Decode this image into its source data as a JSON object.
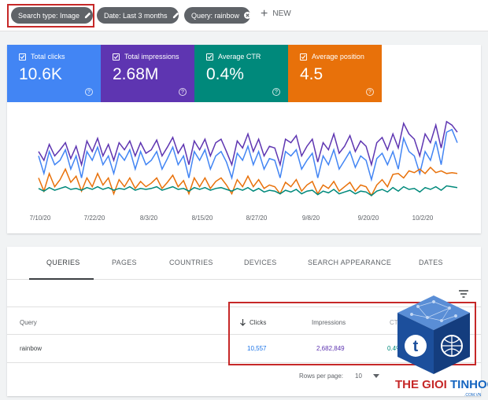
{
  "filters": {
    "chips": [
      {
        "label": "Search type: Image"
      },
      {
        "label": "Date: Last 3 months"
      },
      {
        "label": "Query: rainbow"
      }
    ],
    "new_label": "NEW"
  },
  "metrics": [
    {
      "label": "Total clicks",
      "value": "10.6K",
      "color": "#4285f4"
    },
    {
      "label": "Total impressions",
      "value": "2.68M",
      "color": "#5e35b1"
    },
    {
      "label": "Average CTR",
      "value": "0.4%",
      "color": "#00897b"
    },
    {
      "label": "Average position",
      "value": "4.5",
      "color": "#e8710a"
    }
  ],
  "chart_data": {
    "type": "line",
    "x_ticks": [
      "7/10/20",
      "7/22/20",
      "8/3/20",
      "8/15/20",
      "8/27/20",
      "9/8/20",
      "9/20/20",
      "10/2/20"
    ],
    "series": [
      {
        "name": "Total clicks",
        "color": "#4285f4",
        "values": [
          0.55,
          0.35,
          0.6,
          0.45,
          0.5,
          0.62,
          0.4,
          0.55,
          0.3,
          0.6,
          0.5,
          0.65,
          0.45,
          0.55,
          0.35,
          0.58,
          0.5,
          0.62,
          0.4,
          0.6,
          0.45,
          0.5,
          0.6,
          0.4,
          0.52,
          0.65,
          0.45,
          0.55,
          0.3,
          0.6,
          0.5,
          0.62,
          0.4,
          0.55,
          0.6,
          0.48,
          0.3,
          0.58,
          0.5,
          0.66,
          0.45,
          0.6,
          0.4,
          0.52,
          0.5,
          0.3,
          0.6,
          0.55,
          0.62,
          0.4,
          0.5,
          0.58,
          0.3,
          0.55,
          0.45,
          0.62,
          0.4,
          0.5,
          0.6,
          0.42,
          0.55,
          0.5,
          0.28,
          0.52,
          0.58,
          0.45,
          0.6,
          0.4,
          0.75,
          0.6,
          0.55,
          0.35,
          0.6,
          0.5,
          0.72,
          0.45,
          0.82,
          0.85,
          0.7
        ]
      },
      {
        "name": "Total impressions",
        "color": "#5e35b1",
        "values": [
          0.6,
          0.5,
          0.68,
          0.55,
          0.62,
          0.7,
          0.52,
          0.66,
          0.45,
          0.72,
          0.6,
          0.75,
          0.55,
          0.68,
          0.5,
          0.7,
          0.62,
          0.72,
          0.55,
          0.7,
          0.58,
          0.62,
          0.73,
          0.55,
          0.65,
          0.76,
          0.58,
          0.68,
          0.45,
          0.72,
          0.62,
          0.74,
          0.55,
          0.7,
          0.74,
          0.6,
          0.45,
          0.72,
          0.64,
          0.8,
          0.6,
          0.74,
          0.55,
          0.66,
          0.64,
          0.45,
          0.74,
          0.7,
          0.78,
          0.55,
          0.66,
          0.74,
          0.48,
          0.7,
          0.62,
          0.8,
          0.58,
          0.66,
          0.78,
          0.6,
          0.72,
          0.66,
          0.45,
          0.7,
          0.76,
          0.62,
          0.8,
          0.64,
          0.92,
          0.8,
          0.74,
          0.55,
          0.8,
          0.7,
          0.9,
          0.64,
          0.94,
          0.9,
          0.82
        ]
      },
      {
        "name": "Average position",
        "color": "#e8710a",
        "values": [
          0.3,
          0.15,
          0.35,
          0.2,
          0.28,
          0.4,
          0.25,
          0.32,
          0.15,
          0.3,
          0.2,
          0.35,
          0.22,
          0.3,
          0.12,
          0.28,
          0.2,
          0.3,
          0.18,
          0.26,
          0.2,
          0.24,
          0.3,
          0.18,
          0.25,
          0.33,
          0.2,
          0.27,
          0.12,
          0.3,
          0.2,
          0.3,
          0.18,
          0.26,
          0.3,
          0.22,
          0.12,
          0.28,
          0.2,
          0.32,
          0.2,
          0.28,
          0.18,
          0.22,
          0.2,
          0.12,
          0.25,
          0.2,
          0.28,
          0.15,
          0.22,
          0.26,
          0.12,
          0.22,
          0.18,
          0.26,
          0.15,
          0.2,
          0.25,
          0.15,
          0.22,
          0.2,
          0.1,
          0.22,
          0.28,
          0.2,
          0.34,
          0.35,
          0.3,
          0.38,
          0.36,
          0.4,
          0.35,
          0.42,
          0.36,
          0.38,
          0.35,
          0.36,
          0.35
        ]
      },
      {
        "name": "Average CTR",
        "color": "#00897b",
        "values": [
          0.18,
          0.15,
          0.19,
          0.16,
          0.18,
          0.2,
          0.17,
          0.18,
          0.16,
          0.19,
          0.17,
          0.2,
          0.17,
          0.19,
          0.16,
          0.18,
          0.17,
          0.2,
          0.16,
          0.18,
          0.17,
          0.18,
          0.2,
          0.16,
          0.18,
          0.2,
          0.17,
          0.18,
          0.15,
          0.19,
          0.17,
          0.19,
          0.16,
          0.18,
          0.19,
          0.17,
          0.15,
          0.18,
          0.16,
          0.19,
          0.15,
          0.18,
          0.14,
          0.16,
          0.15,
          0.12,
          0.16,
          0.14,
          0.17,
          0.12,
          0.15,
          0.16,
          0.11,
          0.15,
          0.13,
          0.17,
          0.12,
          0.14,
          0.16,
          0.12,
          0.15,
          0.14,
          0.1,
          0.15,
          0.17,
          0.14,
          0.19,
          0.15,
          0.2,
          0.17,
          0.18,
          0.14,
          0.19,
          0.17,
          0.2,
          0.16,
          0.21,
          0.2,
          0.19
        ]
      }
    ]
  },
  "tabs": [
    {
      "label": "QUERIES"
    },
    {
      "label": "PAGES"
    },
    {
      "label": "COUNTRIES"
    },
    {
      "label": "DEVICES"
    },
    {
      "label": "SEARCH APPEARANCE"
    },
    {
      "label": "DATES"
    }
  ],
  "table": {
    "headers": {
      "query": "Query",
      "clicks": "Clicks",
      "impressions": "Impressions",
      "ctr": "CTR"
    },
    "rows": [
      {
        "query": "rainbow",
        "clicks": "10,557",
        "impressions": "2,682,849",
        "ctr": "0.4%"
      }
    ]
  },
  "pager": {
    "label": "Rows per page:",
    "value": "10"
  },
  "watermark": {
    "brand1": "THE GIOI",
    "brand2": "TINHOC",
    "sub": ".COM.VN",
    "glyph": "t"
  }
}
